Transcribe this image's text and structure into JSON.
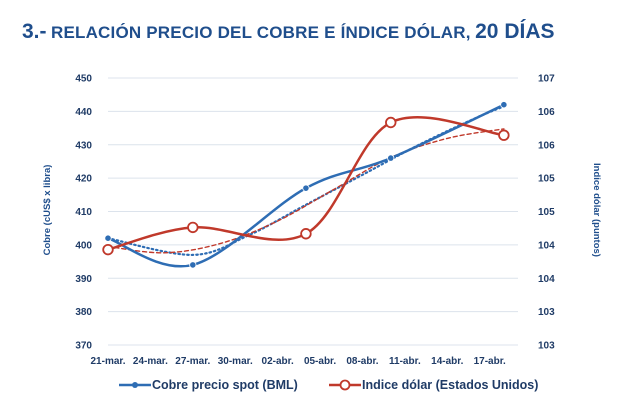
{
  "title": {
    "prefix": "3.-",
    "text": "RELACIÓN PRECIO DEL COBRE E ÍNDICE DÓLAR,",
    "days": "20 DÍAS"
  },
  "colors": {
    "title": "#1f4e8c",
    "copper": "#2e6db4",
    "dollar": "#c0392b",
    "grid": "#dce3ec",
    "tick": "#1f3b66"
  },
  "chart_data": {
    "type": "line",
    "categories": [
      "21-mar.",
      "24-mar.",
      "27-mar.",
      "30-mar.",
      "02-abr.",
      "05-abr.",
      "08-abr.",
      "11-abr.",
      "14-abr.",
      "17-abr."
    ],
    "x_range": [
      0,
      29
    ],
    "y_left": {
      "label": "Cobre (cUS$ x libra)",
      "min": 370,
      "max": 450,
      "ticks": [
        "370",
        "380",
        "390",
        "400",
        "410",
        "420",
        "430",
        "440",
        "450"
      ]
    },
    "y_right": {
      "label": "Indice dólar (puntos)",
      "min": 102.8,
      "max": 107,
      "ticks": [
        "103",
        "103",
        "104",
        "104",
        "105",
        "105",
        "106",
        "106",
        "107"
      ]
    },
    "series": [
      {
        "name": "Cobre precio spot (BML)",
        "axis": "left",
        "color": "#2e6db4",
        "marker": "filled",
        "points": [
          [
            0,
            402
          ],
          [
            6,
            394
          ],
          [
            14,
            417
          ],
          [
            20,
            426
          ],
          [
            28,
            442
          ]
        ],
        "trend": [
          [
            0,
            402
          ],
          [
            6,
            397
          ],
          [
            10,
            403
          ],
          [
            14,
            412
          ],
          [
            18,
            421
          ],
          [
            22,
            430
          ],
          [
            26,
            438
          ],
          [
            28,
            441.5
          ]
        ]
      },
      {
        "name": "Indice dólar (Estados Unidos)",
        "axis": "right",
        "color": "#c0392b",
        "marker": "hollow",
        "points": [
          [
            0,
            104.3
          ],
          [
            6,
            104.65
          ],
          [
            14,
            104.55
          ],
          [
            20,
            106.3
          ],
          [
            28,
            106.1
          ]
        ],
        "trend": [
          [
            0,
            104.35
          ],
          [
            4,
            104.25
          ],
          [
            8,
            104.4
          ],
          [
            12,
            104.75
          ],
          [
            16,
            105.25
          ],
          [
            20,
            105.75
          ],
          [
            24,
            106.05
          ],
          [
            28,
            106.2
          ]
        ]
      }
    ],
    "legend": {
      "position": "bottom",
      "items": [
        "Cobre precio spot (BML)",
        "Indice dólar (Estados Unidos)"
      ]
    },
    "grid": true
  }
}
